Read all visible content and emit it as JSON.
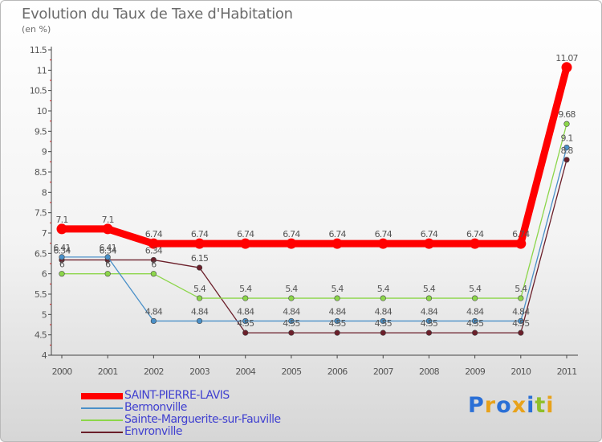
{
  "title": "Evolution du Taux de Taxe d'Habitation",
  "subtitle": "(en %)",
  "logo": {
    "text": "Proxiti",
    "colors": [
      "#2a6fd6",
      "#e8a21a",
      "#2a6fd6",
      "#e8a21a",
      "#2a6fd6",
      "#8fbf2a",
      "#e8a21a"
    ]
  },
  "chart_data": {
    "type": "line",
    "x": [
      "2000",
      "2001",
      "2002",
      "2003",
      "2004",
      "2005",
      "2006",
      "2007",
      "2008",
      "2009",
      "2010",
      "2011"
    ],
    "ylim": [
      4,
      11.5
    ],
    "yticks": [
      "4",
      "4.5",
      "5",
      "5.5",
      "6",
      "6.5",
      "7",
      "7.5",
      "8",
      "8.5",
      "9",
      "9.5",
      "10",
      "10.5",
      "11",
      "11.5"
    ],
    "grid": false,
    "legend_position": "bottom-left",
    "series": [
      {
        "name": "SAINT-PIERRE-LAVIS",
        "color": "#ff0000",
        "values": [
          7.1,
          7.1,
          6.74,
          6.74,
          6.74,
          6.74,
          6.74,
          6.74,
          6.74,
          6.74,
          6.74,
          11.07
        ],
        "labels": [
          "7.1",
          "7.1",
          "6.74",
          "6.74",
          "6.74",
          "6.74",
          "6.74",
          "6.74",
          "6.74",
          "6.74",
          "6.74",
          "11.07"
        ]
      },
      {
        "name": "Bermonville",
        "color": "#4a90c8",
        "values": [
          6.41,
          6.41,
          4.84,
          4.84,
          4.84,
          4.84,
          4.84,
          4.84,
          4.84,
          4.84,
          4.84,
          9.1
        ],
        "labels": [
          "6.41",
          "6.41",
          "4.84",
          "4.84",
          "4.84",
          "4.84",
          "4.84",
          "4.84",
          "4.84",
          "4.84",
          "4.84",
          "9.1"
        ]
      },
      {
        "name": "Sainte-Marguerite-sur-Fauville",
        "color": "#8cd64a",
        "values": [
          6,
          6,
          6,
          5.4,
          5.4,
          5.4,
          5.4,
          5.4,
          5.4,
          5.4,
          5.4,
          9.68
        ],
        "labels": [
          "6",
          "6",
          "6",
          "5.4",
          "5.4",
          "5.4",
          "5.4",
          "5.4",
          "5.4",
          "5.4",
          "5.4",
          "9.68"
        ]
      },
      {
        "name": "Envronville",
        "color": "#6b1f2a",
        "values": [
          6.34,
          6.34,
          6.34,
          6.15,
          4.55,
          4.55,
          4.55,
          4.55,
          4.55,
          4.55,
          4.55,
          8.8
        ],
        "labels": [
          "6.34",
          "6.34",
          "6.34",
          "6.15",
          "4.55",
          "4.55",
          "4.55",
          "4.55",
          "4.55",
          "4.55",
          "4.55",
          "8.8"
        ]
      }
    ]
  }
}
